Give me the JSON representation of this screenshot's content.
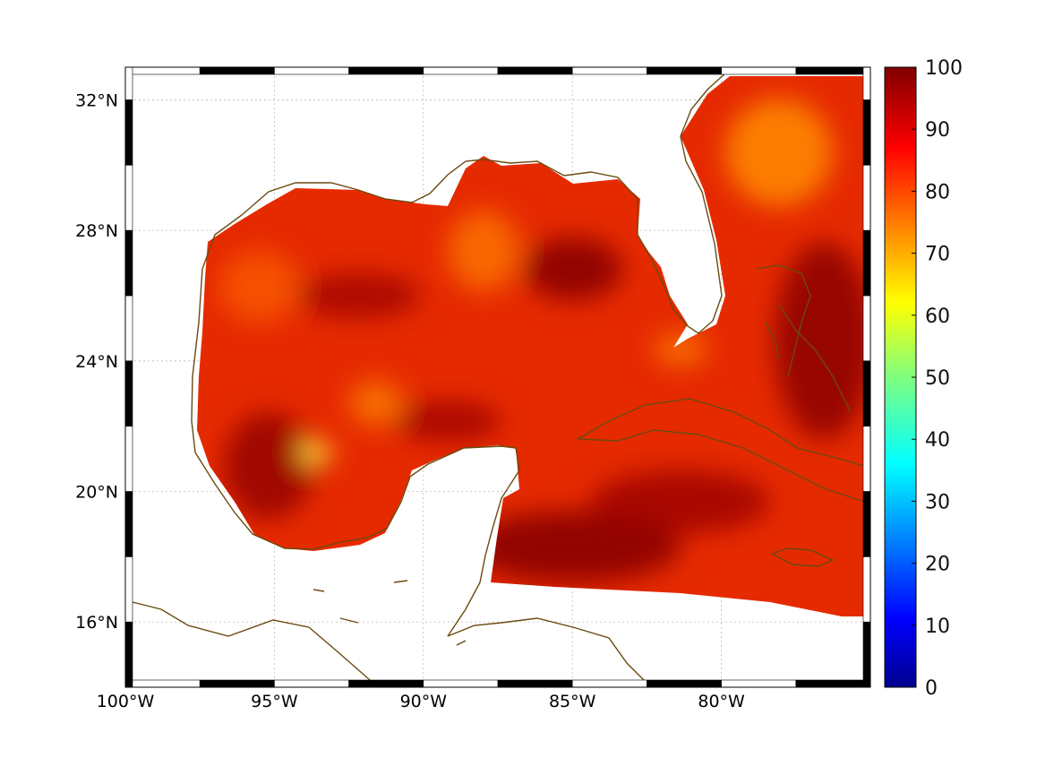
{
  "map": {
    "lon_range": [
      -100,
      -75
    ],
    "lat_range": [
      14,
      33
    ],
    "lon_ticks": [
      {
        "value": -100,
        "label": "100°W"
      },
      {
        "value": -95,
        "label": "95°W"
      },
      {
        "value": -90,
        "label": "90°W"
      },
      {
        "value": -85,
        "label": "85°W"
      },
      {
        "value": -80,
        "label": "80°W"
      }
    ],
    "lat_ticks": [
      {
        "value": 32,
        "label": "32°N"
      },
      {
        "value": 28,
        "label": "28°N"
      },
      {
        "value": 24,
        "label": "24°N"
      },
      {
        "value": 20,
        "label": "20°N"
      },
      {
        "value": 16,
        "label": "16°N"
      }
    ],
    "grid": true,
    "coastline_color": "#6b4a10"
  },
  "colorbar": {
    "colormap": "jet",
    "range": [
      0,
      100
    ],
    "ticks": [
      {
        "value": 100,
        "label": "100"
      },
      {
        "value": 90,
        "label": "90"
      },
      {
        "value": 80,
        "label": "80"
      },
      {
        "value": 70,
        "label": "70"
      },
      {
        "value": 60,
        "label": "60"
      },
      {
        "value": 50,
        "label": "50"
      },
      {
        "value": 40,
        "label": "40"
      },
      {
        "value": 30,
        "label": "30"
      },
      {
        "value": 20,
        "label": "20"
      },
      {
        "value": 10,
        "label": "10"
      },
      {
        "value": 0,
        "label": "0"
      }
    ]
  },
  "chart_data": {
    "type": "heatmap",
    "title": "",
    "xlabel": "",
    "ylabel": "",
    "value_range": [
      0,
      100
    ],
    "field_background_value": 84,
    "hotspots": [
      {
        "name": "max-region-south-gulf",
        "lon": -85.5,
        "lat": 18.5,
        "value": 97
      },
      {
        "name": "max-region-east-gulf",
        "lon": -84.5,
        "lat": 27.0,
        "value": 96
      },
      {
        "name": "max-region-atlantic",
        "lon": -75.8,
        "lat": 25.0,
        "value": 95
      },
      {
        "name": "max-region-bay-campeche",
        "lon": -95.8,
        "lat": 20.5,
        "value": 95
      },
      {
        "name": "min-region-campeche",
        "lon": -93.7,
        "lat": 21.3,
        "value": 64
      },
      {
        "name": "low-region-atlantic-north",
        "lon": -78.3,
        "lat": 30.5,
        "value": 74
      },
      {
        "name": "low-region-central-gulf",
        "lon": -86.5,
        "lat": 27.2,
        "value": 75
      }
    ]
  }
}
